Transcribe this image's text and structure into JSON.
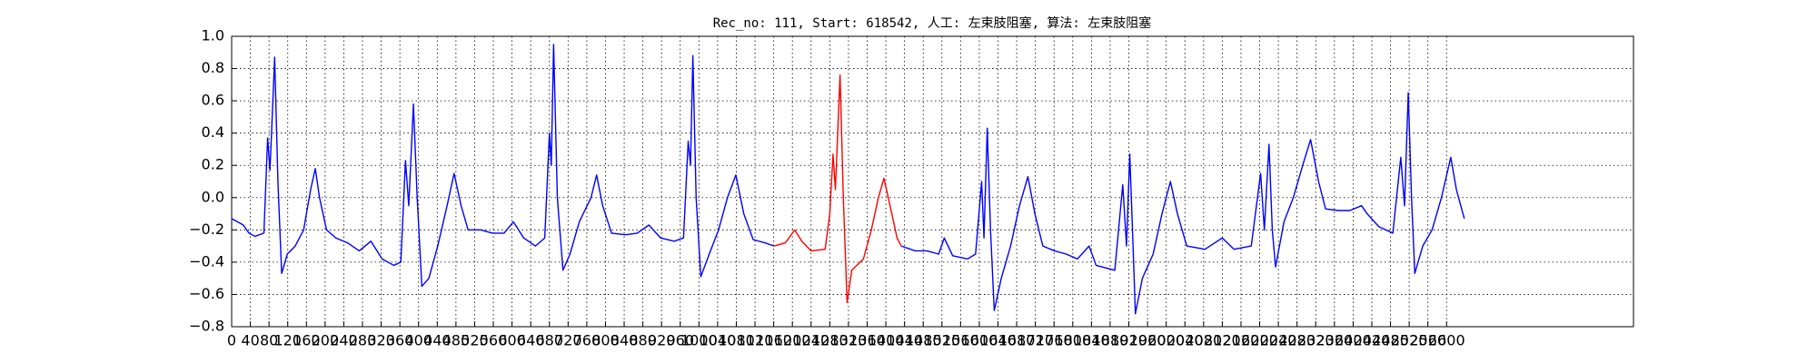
{
  "chart_data": {
    "type": "line",
    "title": "Rec_no: 111, Start: 618542, 人工: 左束肢阻塞, 算法: 左束肢阻塞",
    "x": [
      0,
      25,
      37,
      50,
      69,
      77,
      82,
      92,
      99,
      107,
      119,
      136,
      154,
      169,
      179,
      188,
      203,
      223,
      248,
      273,
      298,
      322,
      347,
      362,
      372,
      379,
      389,
      397,
      407,
      422,
      441,
      461,
      476,
      491,
      506,
      533,
      558,
      583,
      603,
      625,
      650,
      670,
      680,
      684,
      689,
      697,
      709,
      724,
      744,
      769,
      781,
      794,
      813,
      843,
      868,
      893,
      918,
      947,
      967,
      977,
      982,
      987,
      994,
      1004,
      1022,
      1042,
      1061,
      1079,
      1096,
      1116,
      1141,
      1161,
      1185,
      1205,
      1220,
      1240,
      1270,
      1280,
      1287,
      1292,
      1302,
      1309,
      1317,
      1327,
      1352,
      1369,
      1384,
      1396,
      1409,
      1424,
      1433,
      1463,
      1488,
      1513,
      1525,
      1543,
      1575,
      1592,
      1605,
      1610,
      1617,
      1624,
      1632,
      1647,
      1667,
      1686,
      1704,
      1719,
      1736,
      1761,
      1786,
      1810,
      1835,
      1850,
      1890,
      1907,
      1915,
      1922,
      1929,
      1934,
      1949,
      1972,
      1991,
      2009,
      2024,
      2044,
      2083,
      2120,
      2145,
      2182,
      2202,
      2210,
      2220,
      2227,
      2234,
      2252,
      2272,
      2292,
      2309,
      2326,
      2341,
      2368,
      2393,
      2418,
      2430,
      2455,
      2485,
      2502,
      2510,
      2518,
      2525,
      2532,
      2549,
      2569,
      2589,
      2609,
      2621,
      2638
    ],
    "series": [
      {
        "color": "#0000ff",
        "values": [
          -0.13,
          -0.17,
          -0.22,
          -0.24,
          -0.22,
          0.37,
          0.17,
          0.87,
          0.1,
          -0.47,
          -0.35,
          -0.3,
          -0.2,
          0.05,
          0.18,
          0.0,
          -0.2,
          -0.25,
          -0.28,
          -0.33,
          -0.27,
          -0.38,
          -0.42,
          -0.4,
          0.23,
          -0.05,
          0.58,
          0.0,
          -0.55,
          -0.5,
          -0.3,
          -0.05,
          0.15,
          -0.05,
          -0.2,
          -0.2,
          -0.22,
          -0.22,
          -0.15,
          -0.25,
          -0.3,
          -0.25,
          0.4,
          0.2,
          0.95,
          0.0,
          -0.45,
          -0.35,
          -0.15,
          0.0,
          0.14,
          -0.05,
          -0.22,
          -0.23,
          -0.22,
          -0.17,
          -0.25,
          -0.27,
          -0.25,
          0.35,
          0.2,
          0.88,
          0.0,
          -0.49,
          -0.35,
          -0.2,
          0.0,
          0.14,
          -0.1,
          -0.26,
          -0.28,
          -0.3,
          null,
          null,
          null,
          null,
          null,
          null,
          null,
          null,
          null,
          null,
          null,
          null,
          null,
          null,
          null,
          null,
          null,
          null,
          -0.3,
          -0.33,
          -0.33,
          -0.35,
          -0.25,
          -0.36,
          -0.38,
          -0.35,
          0.1,
          -0.25,
          0.43,
          -0.2,
          -0.7,
          -0.5,
          -0.3,
          -0.05,
          0.13,
          -0.1,
          -0.3,
          -0.33,
          -0.35,
          -0.38,
          -0.3,
          -0.42,
          -0.45,
          0.08,
          -0.3,
          0.27,
          -0.3,
          -0.72,
          -0.5,
          -0.35,
          -0.1,
          0.1,
          -0.1,
          -0.3,
          -0.32,
          -0.25,
          -0.32,
          -0.3,
          0.15,
          -0.2,
          0.33,
          -0.2,
          -0.43,
          -0.15,
          0.0,
          0.2,
          0.36,
          0.1,
          -0.07,
          -0.08,
          -0.08,
          -0.05,
          -0.1,
          -0.18,
          -0.22,
          0.25,
          -0.05,
          0.65,
          0.0,
          -0.47,
          -0.3,
          -0.2,
          0.0,
          0.25,
          0.05,
          -0.13
        ]
      },
      {
        "color": "#ff0000",
        "values": [
          null,
          null,
          null,
          null,
          null,
          null,
          null,
          null,
          null,
          null,
          null,
          null,
          null,
          null,
          null,
          null,
          null,
          null,
          null,
          null,
          null,
          null,
          null,
          null,
          null,
          null,
          null,
          null,
          null,
          null,
          null,
          null,
          null,
          null,
          null,
          null,
          null,
          null,
          null,
          null,
          null,
          null,
          null,
          null,
          null,
          null,
          null,
          null,
          null,
          null,
          null,
          null,
          null,
          null,
          null,
          null,
          null,
          null,
          null,
          null,
          null,
          null,
          null,
          null,
          null,
          null,
          null,
          null,
          null,
          null,
          null,
          -0.3,
          -0.28,
          -0.2,
          -0.27,
          -0.33,
          -0.32,
          -0.1,
          0.27,
          0.05,
          0.76,
          0.0,
          -0.65,
          -0.45,
          -0.38,
          -0.2,
          0.0,
          0.12,
          -0.05,
          -0.25,
          -0.3,
          null,
          null,
          null,
          null,
          null,
          null,
          null,
          null,
          null,
          null,
          null,
          null,
          null,
          null,
          null,
          null,
          null,
          null,
          null,
          null,
          null,
          null,
          null,
          null,
          null,
          null,
          null,
          null,
          null,
          null,
          null,
          null,
          null,
          null,
          null,
          null,
          null,
          null,
          null,
          null,
          null,
          null,
          null,
          null,
          null,
          null,
          null,
          null,
          null,
          null,
          null,
          null,
          null,
          null,
          null,
          null,
          null,
          null,
          null,
          null,
          null,
          null,
          null,
          null,
          null,
          null,
          null
        ]
      }
    ],
    "xlim": [
      0,
      3000
    ],
    "xticks": [
      0,
      40,
      80,
      120,
      160,
      200,
      240,
      280,
      320,
      360,
      400,
      440,
      480,
      520,
      560,
      600,
      640,
      680,
      720,
      760,
      800,
      840,
      880,
      920,
      960,
      1000,
      1040,
      1080,
      1120,
      1160,
      1200,
      1240,
      1280,
      1320,
      1360,
      1400,
      1440,
      1480,
      1520,
      1560,
      1600,
      1640,
      1680,
      1720,
      1760,
      1800,
      1840,
      1880,
      1920,
      1960,
      2000,
      2040,
      2080,
      2120,
      2160,
      2200,
      2240,
      2280,
      2320,
      2360,
      2400,
      2440,
      2480,
      2520,
      2560,
      2600
    ],
    "ylim": [
      -0.8,
      1.0
    ],
    "yticks": [
      {
        "value": -0.8,
        "label": "−0.8"
      },
      {
        "value": -0.6,
        "label": "−0.6"
      },
      {
        "value": -0.4,
        "label": "−0.4"
      },
      {
        "value": -0.2,
        "label": "−0.2"
      },
      {
        "value": 0,
        "label": "0.0"
      },
      {
        "value": 0.2,
        "label": "0.2"
      },
      {
        "value": 0.4,
        "label": "0.4"
      },
      {
        "value": 0.6,
        "label": "0.6"
      },
      {
        "value": 0.8,
        "label": "0.8"
      },
      {
        "value": 1,
        "label": "1.0"
      }
    ],
    "grid": true
  }
}
